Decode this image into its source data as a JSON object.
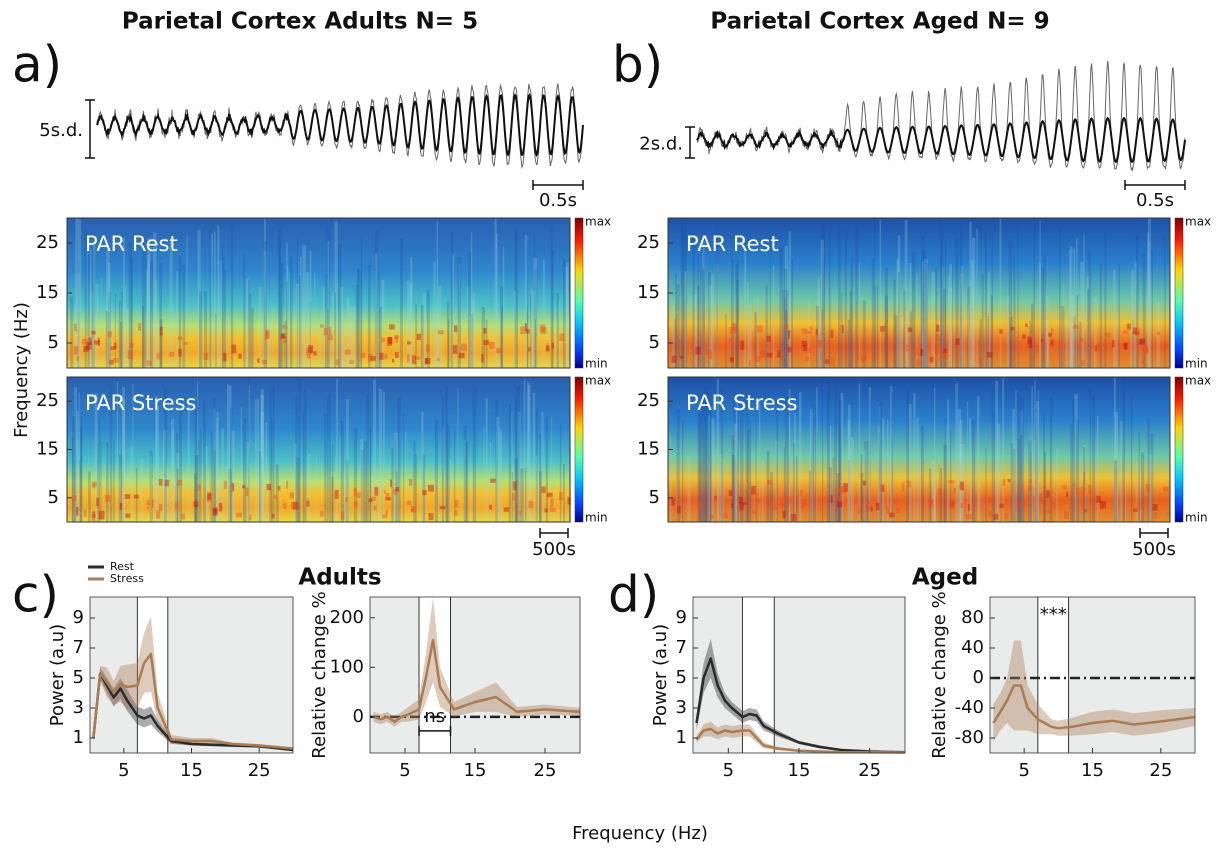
{
  "figure": {
    "panel_labels": [
      "a)",
      "b)",
      "c)",
      "d)"
    ],
    "spectrogram_y_label": "Frequency (Hz)",
    "x_label": "Frequency (Hz)",
    "group_titles": [
      "Adults",
      "Aged"
    ]
  },
  "traces": [
    {
      "title": "Parietal Cortex Adults N= 5",
      "amplitude_bar": "5s.d.",
      "time_bar": "0.5s"
    },
    {
      "title": "Parietal Cortex Aged N= 9",
      "amplitude_bar": "2s.d.",
      "time_bar": "0.5s"
    }
  ],
  "chart_data": [
    {
      "type": "heatmap",
      "label": "PAR Rest",
      "colormap": "jet",
      "ylim": [
        0,
        30
      ],
      "yticks": [
        5,
        15,
        25
      ],
      "colorbar_labels": [
        "max",
        "min"
      ]
    },
    {
      "type": "heatmap",
      "label": "PAR Stress",
      "colormap": "jet",
      "ylim": [
        0,
        30
      ],
      "yticks": [
        5,
        15,
        25
      ],
      "colorbar_labels": [
        "max",
        "min"
      ],
      "time_bar": "500s"
    },
    {
      "type": "heatmap",
      "label": "PAR Rest",
      "colormap": "jet",
      "ylim": [
        0,
        30
      ],
      "yticks": [
        5,
        15,
        25
      ],
      "colorbar_labels": [
        "max",
        "min"
      ]
    },
    {
      "type": "heatmap",
      "label": "PAR Stress",
      "colormap": "jet",
      "ylim": [
        0,
        30
      ],
      "yticks": [
        5,
        15,
        25
      ],
      "colorbar_labels": [
        "max",
        "min"
      ],
      "time_bar": "500s"
    },
    {
      "type": "line",
      "y_label": "Power (a.u)",
      "legend": "top-left",
      "xlim": [
        0,
        30
      ],
      "xticks": [
        5,
        15,
        25
      ],
      "ylim": [
        0,
        10.4
      ],
      "yticks": [
        1,
        3,
        5,
        7,
        9
      ],
      "vlines": [
        7,
        11.5
      ],
      "x": [
        0.5,
        1.5,
        2.5,
        3.5,
        4.5,
        5.5,
        7,
        8,
        9,
        10,
        12,
        15,
        18,
        21,
        25,
        30
      ],
      "series": [
        {
          "name": "Rest",
          "color": "#2b2b2b",
          "values": [
            1,
            5.3,
            4.5,
            3.7,
            4.3,
            3.5,
            2.5,
            2.3,
            2.5,
            1.8,
            0.8,
            0.6,
            0.55,
            0.5,
            0.45,
            0.2
          ],
          "error": [
            0.2,
            0.4,
            0.5,
            0.6,
            0.7,
            0.7,
            0.6,
            0.6,
            0.6,
            0.4,
            0.2,
            0.1,
            0.1,
            0.1,
            0.1,
            0.05
          ]
        },
        {
          "name": "Stress",
          "color": "#a97c55",
          "values": [
            1,
            5.3,
            4.7,
            4.0,
            4.6,
            4.4,
            4.5,
            6.0,
            6.6,
            3.0,
            0.9,
            0.8,
            0.8,
            0.6,
            0.5,
            0.3
          ],
          "error": [
            0.2,
            0.5,
            1.0,
            0.8,
            1.2,
            1.5,
            1.5,
            2.0,
            2.5,
            1.0,
            0.3,
            0.2,
            0.2,
            0.1,
            0.1,
            0.05
          ]
        }
      ]
    },
    {
      "type": "line",
      "y_label": "Relative change %",
      "xlim": [
        0,
        30
      ],
      "xticks": [
        5,
        15,
        25
      ],
      "ylim": [
        -73,
        242
      ],
      "yticks": [
        0,
        100,
        200
      ],
      "vlines": [
        7,
        11.5
      ],
      "reference_line": 0,
      "annotation": "ns",
      "x": [
        0.5,
        1.5,
        2.5,
        3.5,
        4.5,
        5.5,
        7,
        8,
        9,
        10,
        12,
        15,
        18,
        21,
        25,
        30
      ],
      "series": [
        {
          "name": "Stress",
          "color": "#a97c55",
          "values": [
            0,
            -5,
            0,
            -10,
            0,
            5,
            15,
            80,
            155,
            60,
            15,
            30,
            40,
            10,
            15,
            10
          ],
          "error": [
            10,
            10,
            10,
            10,
            10,
            15,
            20,
            50,
            85,
            40,
            15,
            20,
            30,
            10,
            10,
            8
          ]
        }
      ]
    },
    {
      "type": "line",
      "y_label": "Power (a.u)",
      "xlim": [
        0,
        30
      ],
      "xticks": [
        5,
        15,
        25
      ],
      "ylim": [
        0,
        10.4
      ],
      "yticks": [
        1,
        3,
        5,
        7,
        9
      ],
      "vlines": [
        7,
        11.5
      ],
      "x": [
        0.5,
        1.5,
        2.5,
        3.5,
        4.5,
        5.5,
        7,
        8,
        9,
        10,
        12,
        15,
        18,
        21,
        25,
        30
      ],
      "series": [
        {
          "name": "Rest",
          "color": "#2b2b2b",
          "values": [
            2,
            5,
            6.3,
            4.5,
            3.5,
            3,
            2.4,
            2.6,
            2.5,
            1.8,
            1.3,
            0.7,
            0.4,
            0.2,
            0.1,
            0.05
          ],
          "error": [
            0.5,
            1.0,
            1.3,
            0.8,
            0.5,
            0.4,
            0.4,
            0.4,
            0.4,
            0.3,
            0.2,
            0.1,
            0.1,
            0.05,
            0.05,
            0.02
          ]
        },
        {
          "name": "Stress",
          "color": "#a97c55",
          "values": [
            0.9,
            1.5,
            1.6,
            1.3,
            1.5,
            1.4,
            1.5,
            1.5,
            1.0,
            0.5,
            0.3,
            0.15,
            0.1,
            0.05,
            0.05,
            0.03
          ],
          "error": [
            0.2,
            0.4,
            0.5,
            0.4,
            0.4,
            0.4,
            0.4,
            0.4,
            0.3,
            0.2,
            0.1,
            0.05,
            0.05,
            0.02,
            0.02,
            0.01
          ]
        }
      ]
    },
    {
      "type": "line",
      "y_label": "Relative change %",
      "xlim": [
        0,
        30
      ],
      "xticks": [
        5,
        15,
        25
      ],
      "ylim": [
        -100,
        108
      ],
      "yticks": [
        -80,
        -40,
        0,
        40,
        80
      ],
      "vlines": [
        7,
        11.5
      ],
      "reference_line": 0,
      "annotation": "***",
      "x": [
        0.5,
        1.5,
        2.5,
        3.5,
        4.5,
        5.5,
        7,
        8,
        9,
        10,
        12,
        15,
        18,
        21,
        25,
        30
      ],
      "series": [
        {
          "name": "Stress",
          "color": "#a97c55",
          "values": [
            -60,
            -45,
            -30,
            -10,
            -10,
            -40,
            -55,
            -60,
            -65,
            -67,
            -65,
            -60,
            -57,
            -62,
            -58,
            -52
          ],
          "error": [
            25,
            25,
            30,
            60,
            60,
            30,
            20,
            15,
            10,
            10,
            12,
            15,
            15,
            15,
            15,
            12
          ]
        }
      ]
    }
  ]
}
